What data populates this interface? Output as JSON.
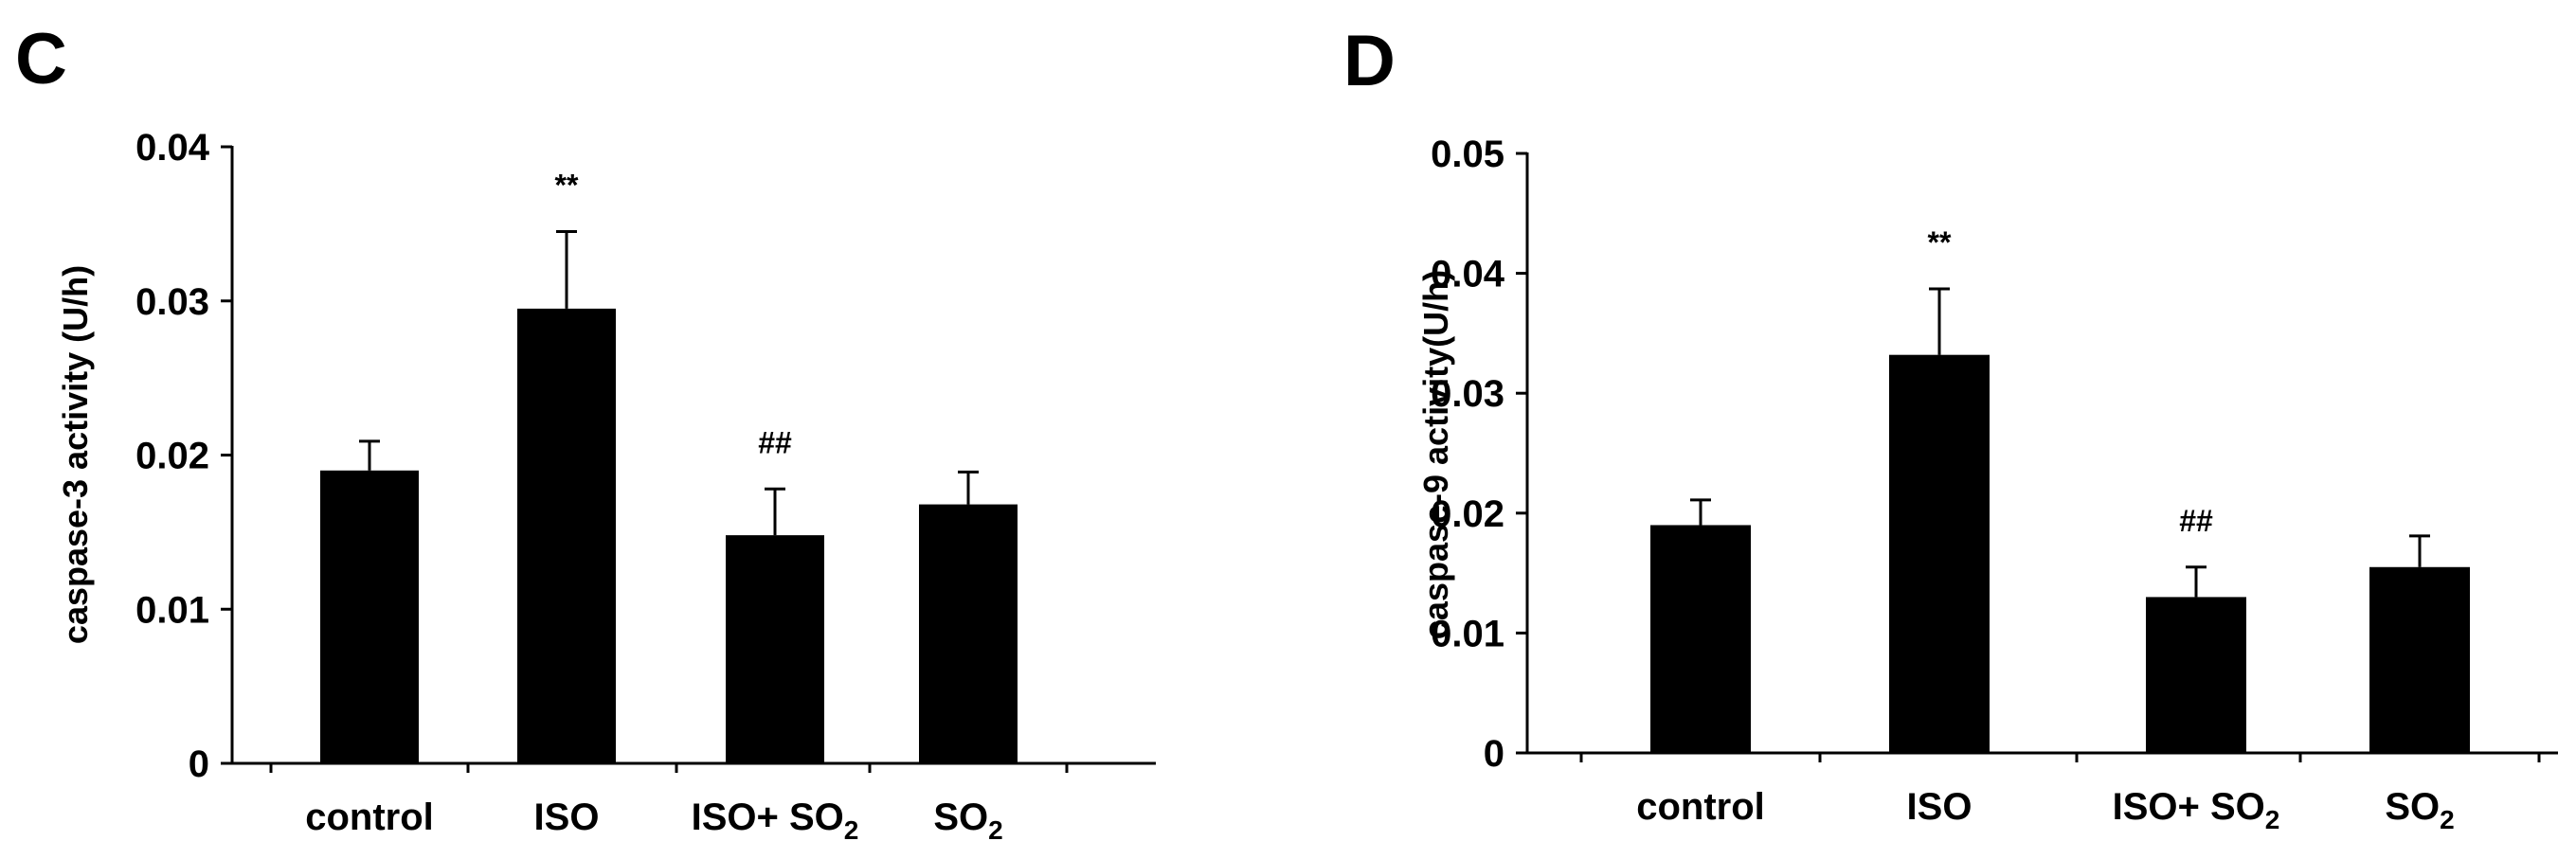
{
  "chart_data": [
    {
      "panel": "C",
      "type": "bar",
      "ylabel": "caspase-3 activity (U/h)",
      "xlabel": "",
      "ylim": [
        0,
        0.04
      ],
      "yticks": [
        {
          "value": 0,
          "label": "0"
        },
        {
          "value": 0.01,
          "label": "0.01"
        },
        {
          "value": 0.02,
          "label": "0.02"
        },
        {
          "value": 0.03,
          "label": "0.03"
        },
        {
          "value": 0.04,
          "label": "0.04"
        }
      ],
      "categories": [
        {
          "label": "control",
          "sub": ""
        },
        {
          "label": "ISO",
          "sub": ""
        },
        {
          "label": "ISO+ SO",
          "sub": "2"
        },
        {
          "label": "SO",
          "sub": "2"
        }
      ],
      "values": [
        0.019,
        0.0295,
        0.0148,
        0.0168
      ],
      "errors": [
        0.0019,
        0.005,
        0.003,
        0.0021
      ],
      "annotations": [
        "",
        "**",
        "##",
        ""
      ]
    },
    {
      "panel": "D",
      "type": "bar",
      "ylabel": "caspase-9 activity(U/h)",
      "xlabel": "",
      "ylim": [
        0,
        0.05
      ],
      "yticks": [
        {
          "value": 0,
          "label": "0"
        },
        {
          "value": 0.01,
          "label": "0.01"
        },
        {
          "value": 0.02,
          "label": "0.02"
        },
        {
          "value": 0.03,
          "label": "0.03"
        },
        {
          "value": 0.04,
          "label": "0.04"
        },
        {
          "value": 0.05,
          "label": "0.05"
        }
      ],
      "categories": [
        {
          "label": "control",
          "sub": ""
        },
        {
          "label": "ISO",
          "sub": ""
        },
        {
          "label": "ISO+ SO",
          "sub": "2"
        },
        {
          "label": "SO",
          "sub": "2"
        }
      ],
      "values": [
        0.019,
        0.0332,
        0.013,
        0.0155
      ],
      "errors": [
        0.0021,
        0.0055,
        0.0025,
        0.0026
      ],
      "annotations": [
        "",
        "**",
        "##",
        ""
      ]
    }
  ]
}
